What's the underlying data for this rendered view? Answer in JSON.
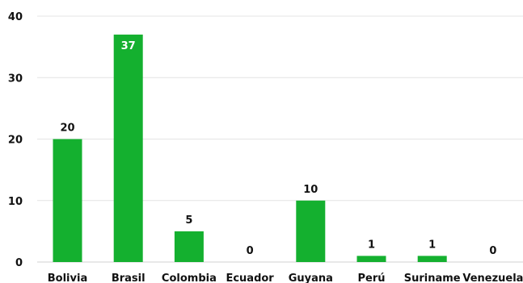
{
  "chart_data": {
    "type": "bar",
    "title": "",
    "xlabel": "",
    "ylabel": "",
    "categories": [
      "Bolivia",
      "Brasil",
      "Colombia",
      "Ecuador",
      "Guyana",
      "Perú",
      "Suriname",
      "Venezuela"
    ],
    "values": [
      20,
      37,
      5,
      0,
      10,
      1,
      1,
      0
    ],
    "ylim": [
      0,
      40
    ],
    "yticks": [
      "0",
      "10",
      "20",
      "30",
      "40"
    ],
    "grid": true,
    "legend": "none",
    "bar_color": "#14b02f",
    "data_labels": true
  }
}
